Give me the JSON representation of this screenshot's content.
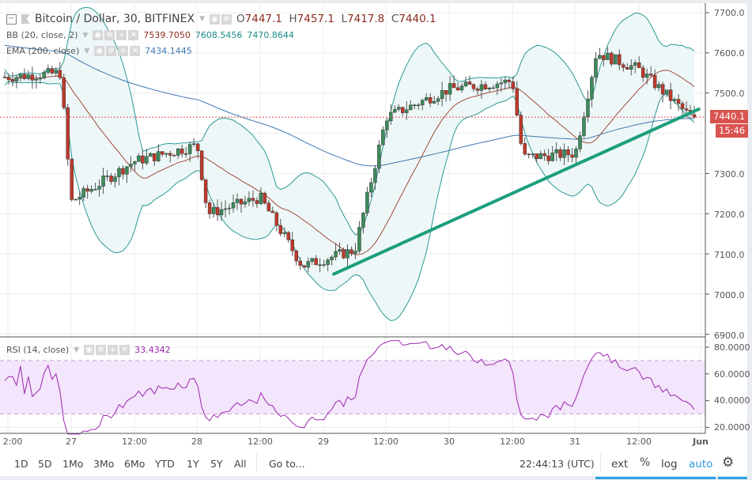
{
  "header": {
    "symbol_title": "Bitcoin / Dollar, 30, BITFINEX",
    "ohlc": [
      {
        "key": "O",
        "value": "7447.1"
      },
      {
        "key": "H",
        "value": "7457.1"
      },
      {
        "key": "L",
        "value": "7417.8"
      },
      {
        "key": "C",
        "value": "7440.1"
      }
    ]
  },
  "indicators": {
    "bb": {
      "label": "BB (20, close, 2)",
      "values": [
        "7539.7050",
        "7608.5456",
        "7470.8644"
      ],
      "colors": [
        "#8b2d1f",
        "#1a8a87",
        "#1a8a87"
      ]
    },
    "ema": {
      "label": "EMA (200, close)",
      "value": "7434.1445",
      "color": "#3d78b0"
    },
    "rsi": {
      "label": "RSI (14, close)",
      "value": "33.4342",
      "color": "#9c27b0"
    }
  },
  "price_axis": {
    "ticks": [
      "7700.0",
      "7600.0",
      "7500.0",
      "7300.0",
      "7200.0",
      "7100.0",
      "7000.0",
      "6900.0"
    ],
    "last_price_tag": "7440.1",
    "countdown_tag": "15:46"
  },
  "rsi_axis": {
    "ticks": [
      "80.0000",
      "60.0000",
      "40.0000",
      "20.0000"
    ]
  },
  "time_axis": {
    "ticks": [
      "2:00",
      "27",
      "12:00",
      "28",
      "12:00",
      "29",
      "12:00",
      "30",
      "12:00",
      "31",
      "12:00",
      "Jun"
    ]
  },
  "toolbar": {
    "ranges": [
      "1D",
      "5D",
      "1Mo",
      "3Mo",
      "6Mo",
      "YTD",
      "1Y",
      "5Y",
      "All"
    ],
    "goto_label": "Go to...",
    "clock": "22:44:13 (UTC)",
    "ext_label": "ext",
    "percent_label": "%",
    "log_label": "log",
    "auto_label": "auto"
  },
  "colors": {
    "up": "#3d8c5c",
    "down": "#c0392b",
    "bb_fill": "#eef7f7",
    "bb_band": "#2a9a96",
    "bb_basis": "#a14a3c",
    "ema": "#3d78b0",
    "trendline": "#1c9e7e",
    "rsi_line": "#9c27b0",
    "rsi_band": "#f3e5fb",
    "price_tag": "#d9534f",
    "auto_blue": "#2a9ae0"
  },
  "chart_data": {
    "type": "candlestick",
    "title": "Bitcoin / Dollar, 30, BITFINEX",
    "ylim": [
      6900,
      7700
    ],
    "x_ticks": [
      "26 12:00",
      "27",
      "27 12:00",
      "28",
      "28 12:00",
      "29",
      "29 12:00",
      "30",
      "30 12:00",
      "31",
      "31 12:00",
      "Jun"
    ],
    "approx_close_path": [
      {
        "t": "26 12:00",
        "close": 7540
      },
      {
        "t": "26 22:00",
        "close": 7550
      },
      {
        "t": "27 00:00",
        "close": 7230
      },
      {
        "t": "27 12:00",
        "close": 7330
      },
      {
        "t": "28 00:00",
        "close": 7370
      },
      {
        "t": "28 02:00",
        "close": 7200
      },
      {
        "t": "28 12:00",
        "close": 7240
      },
      {
        "t": "28 20:00",
        "close": 7070
      },
      {
        "t": "29 06:00",
        "close": 7110
      },
      {
        "t": "29 12:00",
        "close": 7440
      },
      {
        "t": "30 00:00",
        "close": 7510
      },
      {
        "t": "30 12:00",
        "close": 7530
      },
      {
        "t": "30 14:00",
        "close": 7340
      },
      {
        "t": "31 00:00",
        "close": 7350
      },
      {
        "t": "31 04:00",
        "close": 7600
      },
      {
        "t": "31 12:00",
        "close": 7560
      },
      {
        "t": "31 22:00",
        "close": 7440
      }
    ],
    "last": {
      "open": 7447.1,
      "high": 7457.1,
      "low": 7417.8,
      "close": 7440.1
    },
    "bollinger": {
      "basis": 7539.705,
      "upper": 7608.5456,
      "lower": 7470.8644
    },
    "ema200": 7434.1445,
    "trendline": {
      "from": {
        "t": "29 02:00",
        "price": 7050
      },
      "to": {
        "t": "31 23:30",
        "price": 7460
      }
    },
    "rsi": {
      "period": 14,
      "last": 33.4342,
      "overbought": 70,
      "oversold": 30,
      "ylim": [
        15,
        85
      ]
    }
  }
}
